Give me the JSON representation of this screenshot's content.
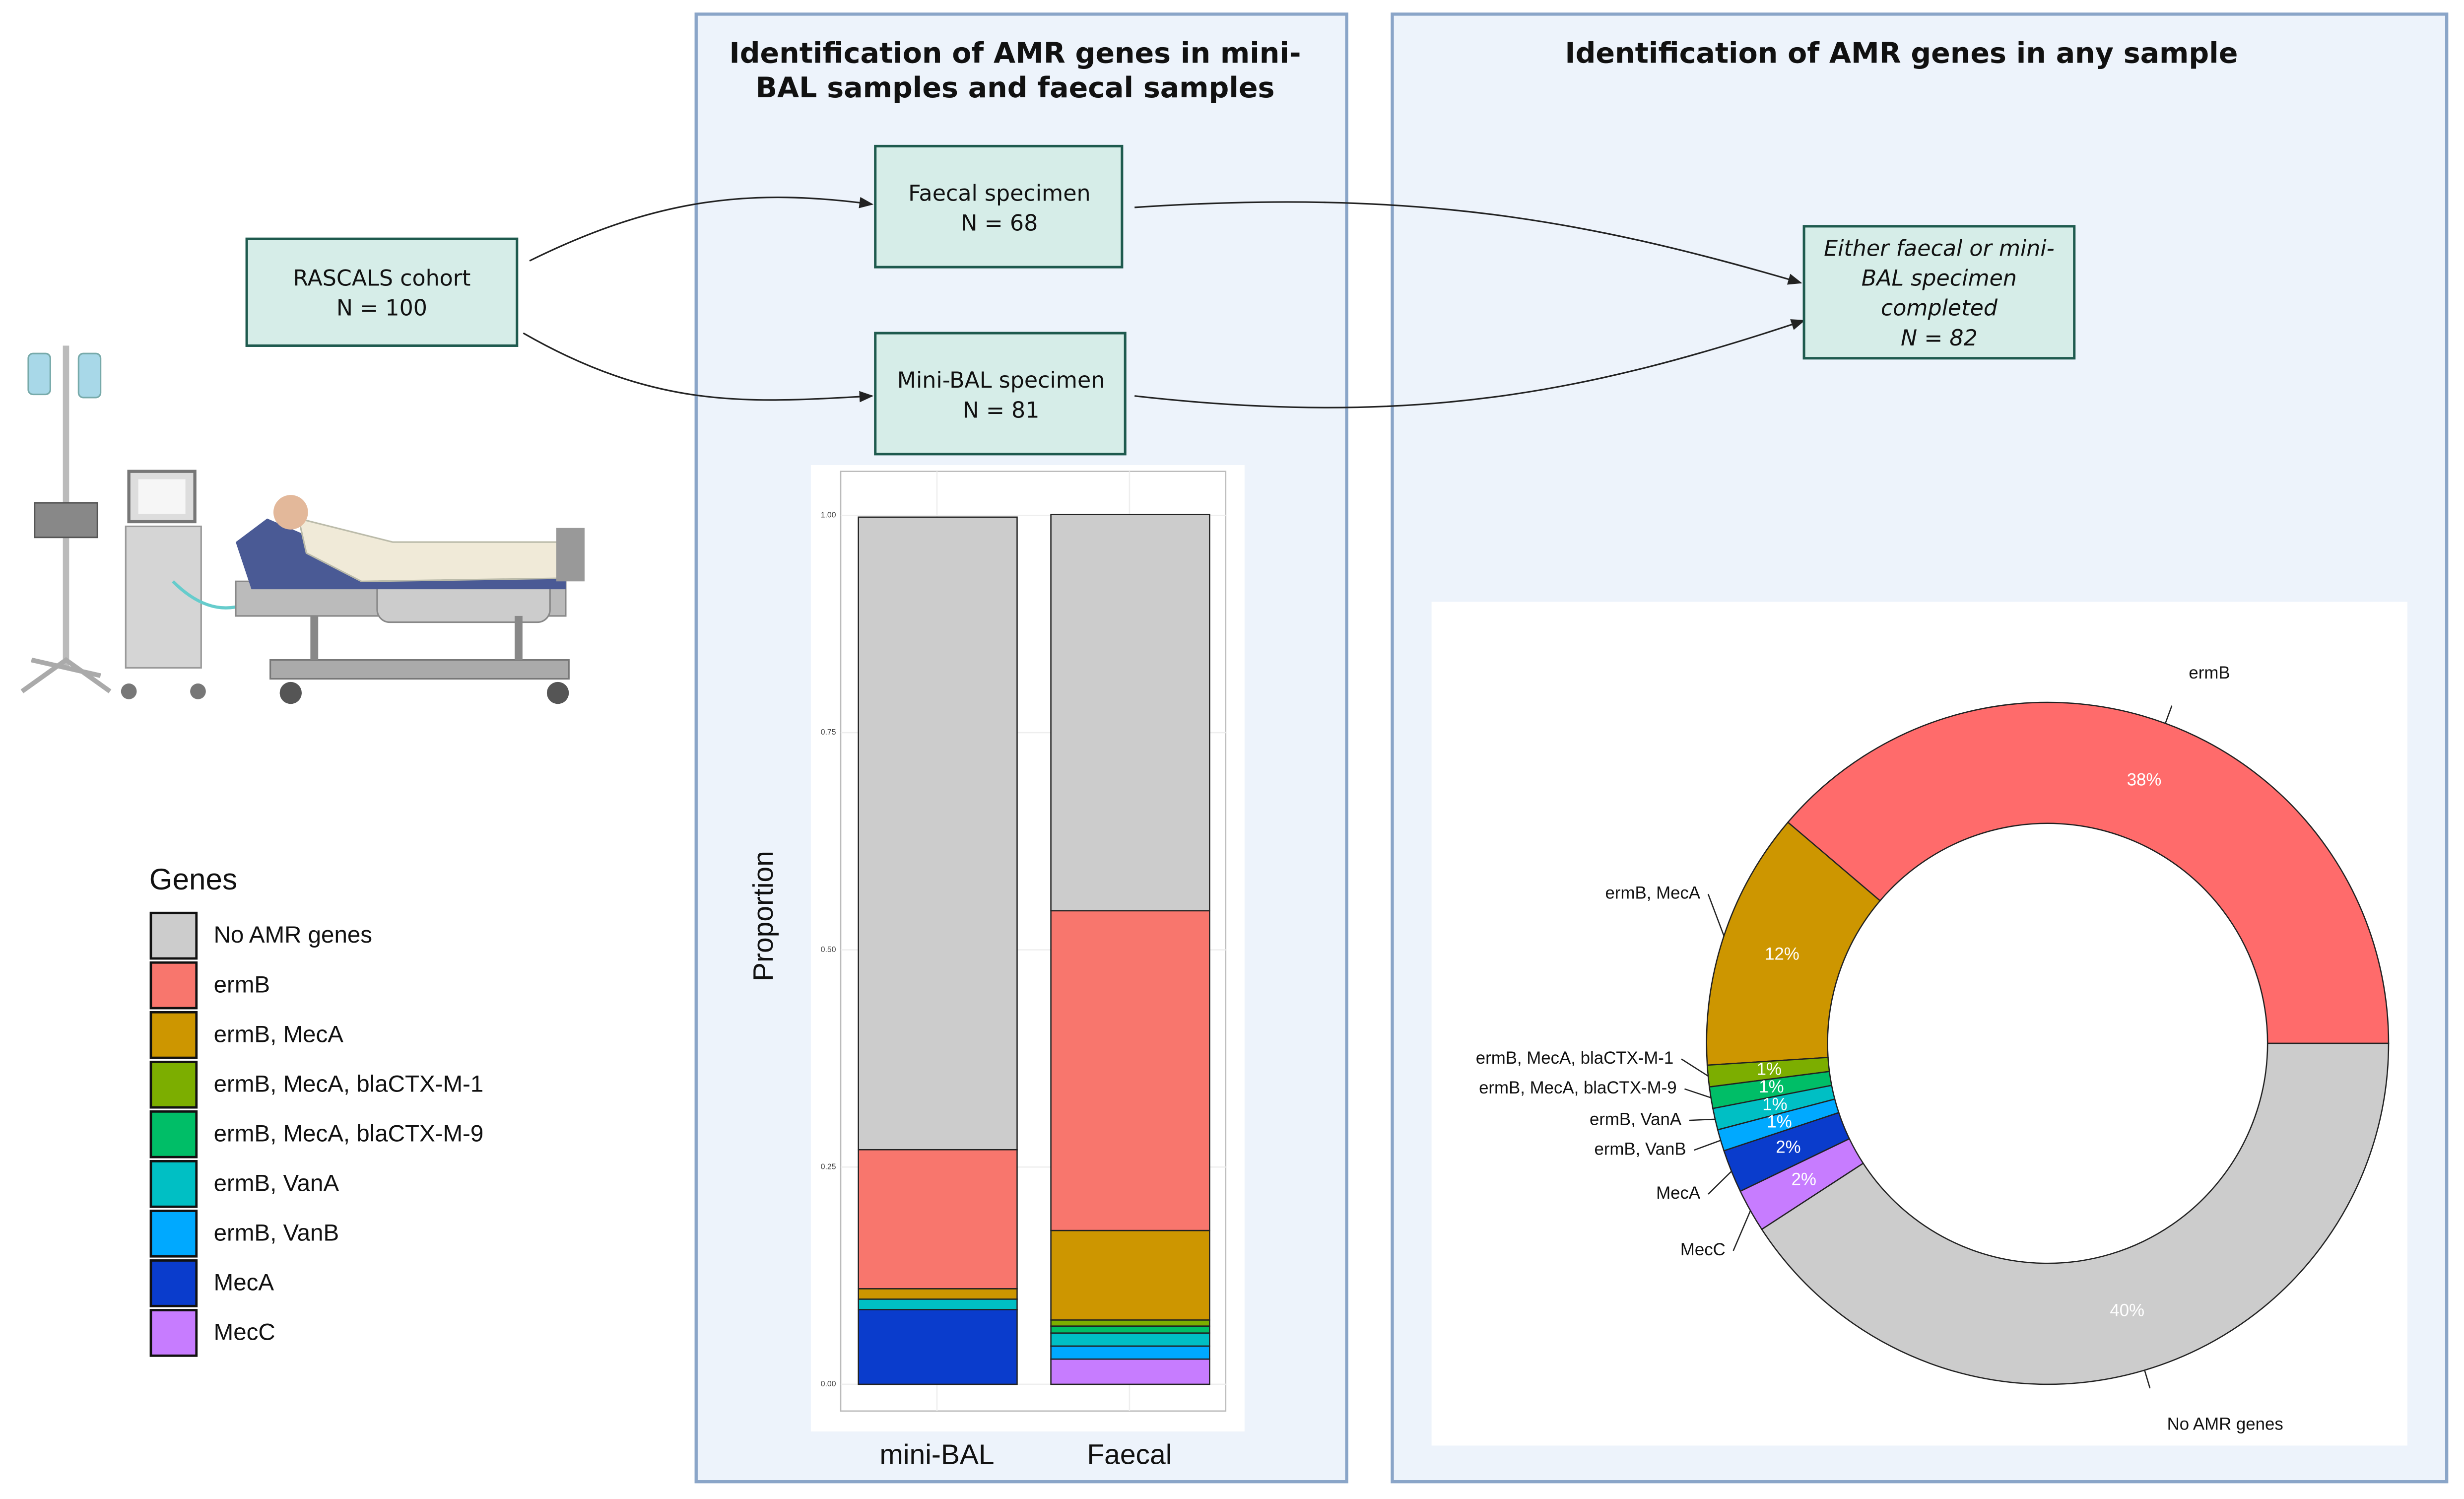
{
  "panels": {
    "left_title_lines": [
      "Identification of AMR genes in mini-",
      "BAL samples and faecal samples"
    ],
    "right_title": "Identification of AMR genes in any sample"
  },
  "nodes": [
    {
      "label_lines": [
        "RASCALS cohort"
      ],
      "count_label": "N = 100"
    },
    {
      "label_lines": [
        "Faecal specimen"
      ],
      "count_label": "N = 68"
    },
    {
      "label_lines": [
        "Mini-BAL specimen"
      ],
      "count_label": "N = 81"
    },
    {
      "label_lines": [
        "Either faecal or mini-",
        "BAL specimen",
        "completed"
      ],
      "count_label": "N = 82"
    }
  ],
  "chart_data": [
    {
      "type": "stacked-bar",
      "y_label": "Proportion",
      "legend_title": "Genes",
      "categories": [
        "mini-BAL",
        "Faecal"
      ],
      "ylim": [
        0,
        1
      ],
      "yticks": [
        {
          "value": 0,
          "label": "0.00"
        },
        {
          "value": 0.25,
          "label": "0.25"
        },
        {
          "value": 0.5,
          "label": "0.50"
        },
        {
          "value": 0.75,
          "label": "0.75"
        },
        {
          "value": 1,
          "label": "1.00"
        }
      ],
      "grid": true,
      "series": [
        {
          "name": "No AMR genes",
          "color": "#cccccc",
          "values": [
            0.728,
            0.456
          ]
        },
        {
          "name": "ermB",
          "color": "#f8766d",
          "values": [
            0.16,
            0.368
          ]
        },
        {
          "name": "ermB, MecA",
          "color": "#cd9600",
          "values": [
            0.012,
            0.103
          ]
        },
        {
          "name": "ermB, MecA, blaCTX-M-1",
          "color": "#7cae00",
          "values": [
            0,
            0.007
          ]
        },
        {
          "name": "ermB, MecA, blaCTX-M-9",
          "color": "#00be67",
          "values": [
            0,
            0.008
          ]
        },
        {
          "name": "ermB, VanA",
          "color": "#00bfc4",
          "values": [
            0.012,
            0.015
          ]
        },
        {
          "name": "ermB, VanB",
          "color": "#00a9ff",
          "values": [
            0,
            0.015
          ]
        },
        {
          "name": "MecA",
          "color": "#0a3ccc",
          "values": [
            0.086,
            0
          ]
        },
        {
          "name": "MecC",
          "color": "#c77cff",
          "values": [
            0,
            0.029
          ]
        }
      ]
    },
    {
      "type": "donut",
      "categories": [
        "ermB",
        "ermB, MecA",
        "ermB, MecA, blaCTX-M-1",
        "ermB, MecA, blaCTX-M-9",
        "ermB, VanA",
        "ermB, VanB",
        "MecA",
        "MecC",
        "No AMR genes"
      ],
      "values": [
        38,
        12,
        1,
        1,
        1,
        1,
        2,
        2,
        40
      ],
      "value_labels": [
        "38%",
        "12%",
        "1%",
        "1%",
        "1%",
        "1%",
        "2%",
        "2%",
        "40%"
      ],
      "colors": [
        "#ff6b6b",
        "#cd9600",
        "#7cae00",
        "#00be67",
        "#00bfc4",
        "#00a9ff",
        "#0a3ccc",
        "#c77cff",
        "#cccccc"
      ]
    }
  ]
}
